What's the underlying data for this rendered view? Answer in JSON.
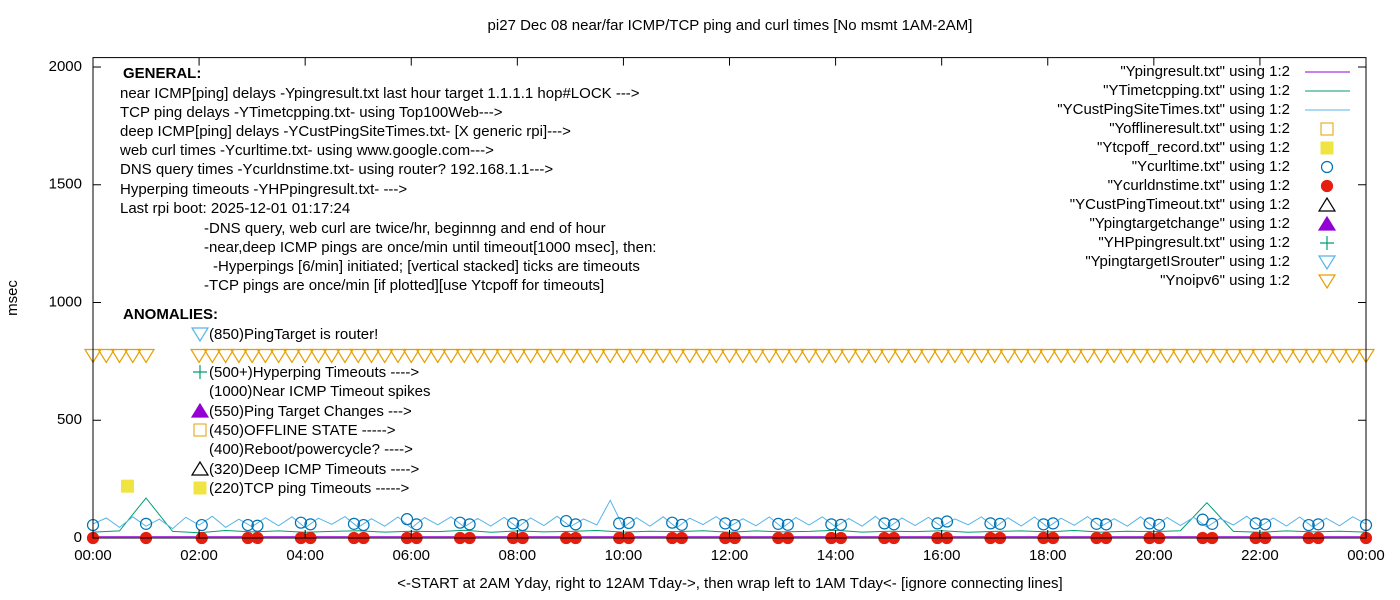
{
  "chart_data": {
    "type": "line",
    "title": "pi27 Dec 08  near/far ICMP/TCP ping and curl times [No msmt 1AM-2AM]",
    "x_label": "<-START at 2AM Yday, right to 12AM Tday->, then wrap left to 1AM Tday<- [ignore connecting lines]",
    "y_label": "msec",
    "xlim": [
      0,
      24
    ],
    "ylim": [
      0,
      2040
    ],
    "xticks": [
      {
        "value": 0,
        "label": "00:00"
      },
      {
        "value": 2,
        "label": "02:00"
      },
      {
        "value": 4,
        "label": "04:00"
      },
      {
        "value": 6,
        "label": "06:00"
      },
      {
        "value": 8,
        "label": "08:00"
      },
      {
        "value": 10,
        "label": "10:00"
      },
      {
        "value": 12,
        "label": "12:00"
      },
      {
        "value": 14,
        "label": "14:00"
      },
      {
        "value": 16,
        "label": "16:00"
      },
      {
        "value": 18,
        "label": "18:00"
      },
      {
        "value": 20,
        "label": "20:00"
      },
      {
        "value": 22,
        "label": "22:00"
      },
      {
        "value": 24,
        "label": "00:00"
      }
    ],
    "yticks": [
      0,
      500,
      1000,
      1500,
      2000
    ],
    "legend": "top-right",
    "annotations": {
      "general_title": "GENERAL:",
      "general": [
        "near ICMP[ping] delays -Ypingresult.txt last hour target 1.1.1.1 hop#LOCK --->",
        "TCP ping delays -YTimetcpping.txt- using Top100Web--->",
        "deep ICMP[ping] delays -YCustPingSiteTimes.txt- [X generic rpi]--->",
        "web curl times -Ycurltime.txt- using www.google.com--->",
        "DNS query times -Ycurldnstime.txt- using router? 192.168.1.1--->",
        "Hyperping timeouts -YHPpingresult.txt- --->",
        "Last rpi boot: 2025-12-01 01:17:24",
        "-DNS query, web curl are twice/hr, beginnng and end of hour",
        "-near,deep ICMP pings are once/min until timeout[1000 msec], then:",
        "-Hyperpings [6/min] initiated; [vertical stacked] ticks are timeouts",
        "-TCP pings are once/min [if plotted][use Ytcpoff for timeouts]"
      ],
      "anomalies_title": "ANOMALIES:",
      "anomalies": [
        "(850)PingTarget is router!",
        "(500+)Hyperping Timeouts ---->",
        "(1000)Near ICMP Timeout spikes",
        "(550)Ping Target Changes --->",
        "(450)OFFLINE STATE ----->",
        "(400)Reboot/powercycle? ---->",
        "(320)Deep ICMP Timeouts ---->",
        "(220)TCP ping Timeouts ----->"
      ]
    },
    "series": [
      {
        "name": "\"Ypingresult.txt\" using 1:2",
        "color": "#9400d3",
        "marker": "line",
        "x": [
          0,
          24
        ],
        "values": [
          5,
          5
        ]
      },
      {
        "name": "\"YTimetcpping.txt\" using 1:2",
        "color": "#009e73",
        "marker": "line",
        "x": [
          0,
          0.5,
          1,
          1.5,
          2,
          2.5,
          3,
          3.5,
          4,
          4.5,
          5,
          5.5,
          6,
          6.5,
          7,
          7.5,
          8,
          8.5,
          9,
          9.5,
          10,
          10.5,
          11,
          11.5,
          12,
          12.5,
          13,
          13.5,
          14,
          14.5,
          15,
          15.5,
          16,
          16.5,
          17,
          17.5,
          18,
          18.5,
          19,
          19.5,
          20,
          20.5,
          21,
          21.5,
          22,
          22.5,
          23,
          23.5,
          24
        ],
        "values": [
          25,
          30,
          170,
          28,
          22,
          32,
          26,
          30,
          24,
          28,
          31,
          25,
          29,
          27,
          33,
          24,
          30,
          26,
          28,
          32,
          25,
          29,
          27,
          31,
          24,
          30,
          26,
          28,
          33,
          25,
          29,
          27,
          31,
          24,
          28,
          30,
          26,
          32,
          25,
          29,
          27,
          31,
          150,
          28,
          24,
          30,
          26,
          29,
          25
        ]
      },
      {
        "name": "\"YCustPingSiteTimes.txt\" using 1:2",
        "color": "#56b4e9",
        "marker": "line",
        "x": [
          0,
          0.25,
          0.5,
          0.75,
          1,
          1.25,
          1.5,
          1.75,
          2,
          2.25,
          2.5,
          2.75,
          3,
          3.25,
          3.5,
          3.75,
          4,
          4.25,
          4.5,
          4.75,
          5,
          5.25,
          5.5,
          5.75,
          6,
          6.25,
          6.5,
          6.75,
          7,
          7.25,
          7.5,
          7.75,
          8,
          8.25,
          8.5,
          8.75,
          9,
          9.25,
          9.5,
          9.75,
          10,
          10.25,
          10.5,
          10.75,
          11,
          11.25,
          11.5,
          11.75,
          12,
          12.25,
          12.5,
          12.75,
          13,
          13.25,
          13.5,
          13.75,
          14,
          14.25,
          14.5,
          14.75,
          15,
          15.25,
          15.5,
          15.75,
          16,
          16.25,
          16.5,
          16.75,
          17,
          17.25,
          17.5,
          17.75,
          18,
          18.25,
          18.5,
          18.75,
          19,
          19.25,
          19.5,
          19.75,
          20,
          20.25,
          20.5,
          20.75,
          21,
          21.25,
          21.5,
          21.75,
          22,
          22.25,
          22.5,
          22.75,
          23,
          23.25,
          23.5,
          23.75,
          24
        ],
        "values": [
          60,
          85,
          45,
          90,
          50,
          80,
          40,
          88,
          55,
          92,
          45,
          80,
          48,
          86,
          52,
          90,
          44,
          84,
          58,
          91,
          46,
          82,
          50,
          89,
          42,
          87,
          56,
          90,
          47,
          83,
          51,
          88,
          45,
          85,
          53,
          92,
          49,
          81,
          55,
          160,
          46,
          86,
          50,
          90,
          44,
          84,
          57,
          91,
          48,
          82,
          52,
          89,
          43,
          87,
          55,
          90,
          47,
          83,
          50,
          92,
          45,
          85,
          53,
          88,
          49,
          81,
          56,
          90,
          44,
          86,
          51,
          89,
          46,
          84,
          54,
          91,
          48,
          82,
          50,
          90,
          45,
          87,
          53,
          88,
          47,
          83,
          55,
          92,
          49,
          85,
          51,
          89,
          46,
          84,
          52,
          90,
          60
        ]
      },
      {
        "name": "\"Yofflineresult.txt\" using 1:2",
        "color": "#e69f00",
        "marker": "square-open",
        "x": [],
        "values": []
      },
      {
        "name": "\"Ytcpoff_record.txt\" using 1:2",
        "color": "#f0e442",
        "marker": "square-filled",
        "x": [
          0.65
        ],
        "values": [
          220
        ]
      },
      {
        "name": "\"Ycurltime.txt\" using 1:2",
        "color": "#0072b2",
        "marker": "circle-open",
        "x": [
          0,
          1,
          2.05,
          2.92,
          3.1,
          3.92,
          4.1,
          4.92,
          5.1,
          5.92,
          6.1,
          6.92,
          7.1,
          7.92,
          8.1,
          8.92,
          9.1,
          9.92,
          10.1,
          10.92,
          11.1,
          11.92,
          12.1,
          12.92,
          13.1,
          13.92,
          14.1,
          14.92,
          15.1,
          15.92,
          16.1,
          16.92,
          17.1,
          17.92,
          18.1,
          18.92,
          19.1,
          19.92,
          20.1,
          20.92,
          21.1,
          21.92,
          22.1,
          22.92,
          23.1,
          24
        ],
        "values": [
          55,
          60,
          55,
          55,
          52,
          65,
          58,
          60,
          55,
          80,
          58,
          65,
          58,
          62,
          55,
          72,
          58,
          62,
          64,
          65,
          56,
          62,
          55,
          60,
          56,
          58,
          56,
          62,
          58,
          62,
          70,
          62,
          60,
          58,
          62,
          60,
          58,
          62,
          56,
          78,
          60,
          62,
          58,
          55,
          58,
          55
        ]
      },
      {
        "name": "\"Ycurldnstime.txt\" using 1:2",
        "color": "#e51e10",
        "marker": "circle-filled",
        "x": [
          0,
          1,
          2.05,
          2.92,
          3.1,
          3.92,
          4.1,
          4.92,
          5.1,
          5.92,
          6.1,
          6.92,
          7.1,
          7.92,
          8.1,
          8.92,
          9.1,
          9.92,
          10.1,
          10.92,
          11.1,
          11.92,
          12.1,
          12.92,
          13.1,
          13.92,
          14.1,
          14.92,
          15.1,
          15.92,
          16.1,
          16.92,
          17.1,
          17.92,
          18.1,
          18.92,
          19.1,
          19.92,
          20.1,
          20.92,
          21.1,
          21.92,
          22.1,
          22.92,
          23.1,
          24
        ],
        "values": [
          0,
          0,
          0,
          0,
          0,
          0,
          0,
          0,
          0,
          0,
          0,
          0,
          0,
          0,
          0,
          0,
          0,
          0,
          0,
          0,
          0,
          0,
          0,
          0,
          0,
          0,
          0,
          0,
          0,
          0,
          0,
          0,
          0,
          0,
          0,
          0,
          0,
          0,
          0,
          0,
          0,
          0,
          0,
          0,
          0,
          0
        ]
      },
      {
        "name": "\"YCustPingTimeout.txt\" using 1:2",
        "color": "#000000",
        "marker": "triangle-open",
        "x": [],
        "values": []
      },
      {
        "name": "\"Ypingtargetchange\" using 1:2",
        "color": "#9400d3",
        "marker": "triangle-filled",
        "x": [],
        "values": []
      },
      {
        "name": "\"YHPpingresult.txt\" using 1:2",
        "color": "#009e73",
        "marker": "plus",
        "x": [],
        "values": []
      },
      {
        "name": "\"YpingtargetISrouter\" using 1:2",
        "color": "#56b4e9",
        "marker": "down-triangle-open",
        "x": [],
        "values": []
      },
      {
        "name": "\"Ynoipv6\" using 1:2",
        "color": "#e69f00",
        "marker": "down-triangle-open",
        "x": [
          0,
          0.25,
          0.5,
          0.75,
          1,
          2,
          2.25,
          2.5,
          2.75,
          3,
          3.25,
          3.5,
          3.75,
          4,
          4.25,
          4.5,
          4.75,
          5,
          5.25,
          5.5,
          5.75,
          6,
          6.25,
          6.5,
          6.75,
          7,
          7.25,
          7.5,
          7.75,
          8,
          8.25,
          8.5,
          8.75,
          9,
          9.25,
          9.5,
          9.75,
          10,
          10.25,
          10.5,
          10.75,
          11,
          11.25,
          11.5,
          11.75,
          12,
          12.25,
          12.5,
          12.75,
          13,
          13.25,
          13.5,
          13.75,
          14,
          14.25,
          14.5,
          14.75,
          15,
          15.25,
          15.5,
          15.75,
          16,
          16.25,
          16.5,
          16.75,
          17,
          17.25,
          17.5,
          17.75,
          18,
          18.25,
          18.5,
          18.75,
          19,
          19.25,
          19.5,
          19.75,
          20,
          20.25,
          20.5,
          20.75,
          21,
          21.25,
          21.5,
          21.75,
          22,
          22.25,
          22.5,
          22.75,
          23,
          23.25,
          23.5,
          23.75,
          24
        ],
        "values": [
          775,
          775,
          775,
          775,
          775,
          775,
          775,
          775,
          775,
          775,
          775,
          775,
          775,
          775,
          775,
          775,
          775,
          775,
          775,
          775,
          775,
          775,
          775,
          775,
          775,
          775,
          775,
          775,
          775,
          775,
          775,
          775,
          775,
          775,
          775,
          775,
          775,
          775,
          775,
          775,
          775,
          775,
          775,
          775,
          775,
          775,
          775,
          775,
          775,
          775,
          775,
          775,
          775,
          775,
          775,
          775,
          775,
          775,
          775,
          775,
          775,
          775,
          775,
          775,
          775,
          775,
          775,
          775,
          775,
          775,
          775,
          775,
          775,
          775,
          775,
          775,
          775,
          775,
          775,
          775,
          775,
          775,
          775,
          775,
          775,
          775,
          775,
          775,
          775,
          775,
          775,
          775,
          775,
          775
        ]
      }
    ]
  }
}
